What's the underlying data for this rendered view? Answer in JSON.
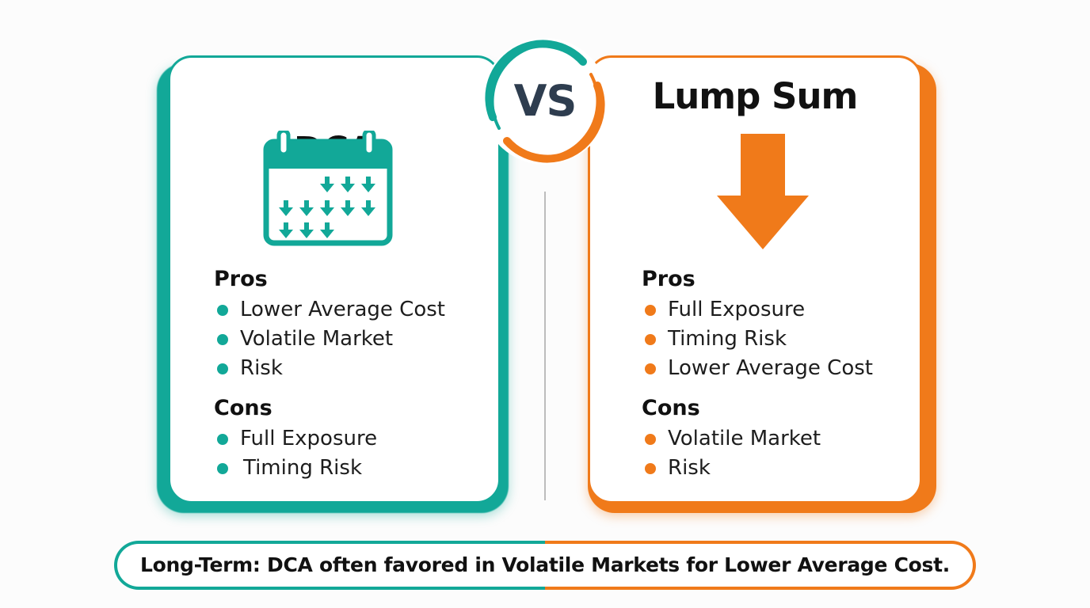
{
  "vs_label": "VS",
  "colors": {
    "dca": "#12a898",
    "lump_sum": "#f07a1a",
    "vs_text": "#2e3d4f"
  },
  "dca": {
    "title": "DCA",
    "icon": "calendar-with-arrows-icon",
    "pros_title": "Pros",
    "pros": [
      "Lower Average Cost",
      "Volatile Market",
      "Risk"
    ],
    "cons_title": "Cons",
    "cons": [
      "Full Exposure",
      "Timing Risk"
    ]
  },
  "lump_sum": {
    "title": "Lump Sum",
    "icon": "down-arrow-icon",
    "pros_title": "Pros",
    "pros": [
      "Full Exposure",
      "Timing Risk",
      "Lower Average Cost"
    ],
    "cons_title": "Cons",
    "cons": [
      "Volatile Market",
      "Risk"
    ]
  },
  "footer": "Long-Term: DCA often favored in Volatile Markets for Lower Average Cost."
}
